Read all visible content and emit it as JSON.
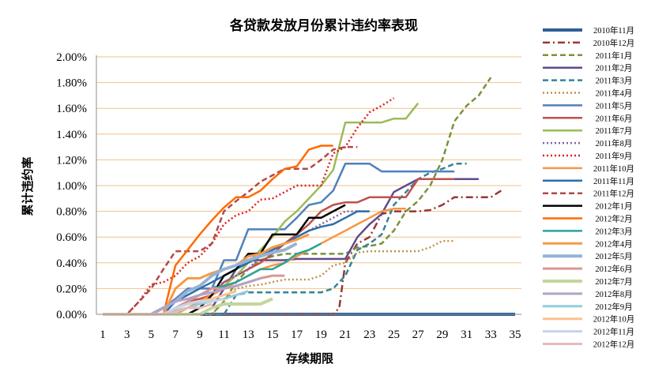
{
  "chart_data": {
    "type": "line",
    "title": "各贷款发放月份累计违约率表现",
    "xlabel": "存续期限",
    "ylabel": "累计违约率",
    "x_ticks": [
      1,
      3,
      5,
      7,
      9,
      11,
      13,
      15,
      17,
      19,
      21,
      23,
      25,
      27,
      29,
      31,
      33,
      35
    ],
    "y_ticks": [
      "0.00%",
      "0.20%",
      "0.40%",
      "0.60%",
      "0.80%",
      "1.00%",
      "1.20%",
      "1.40%",
      "1.60%",
      "1.80%",
      "2.00%"
    ],
    "xlim": [
      1,
      35
    ],
    "ylim": [
      0,
      2.0
    ],
    "y_unit": "%",
    "grid": "horizontal",
    "legend_position": "right",
    "series": [
      {
        "name": "2010年11月",
        "color": "#2e5f96",
        "dash": "solid",
        "width": 4,
        "x": [
          1,
          2,
          3,
          4,
          5,
          6,
          7,
          8,
          9,
          10,
          11,
          12,
          13,
          14,
          15,
          16,
          17,
          18,
          19,
          20,
          21,
          22,
          23,
          24,
          25,
          26,
          27,
          28,
          29,
          30,
          31,
          32,
          33,
          34,
          35
        ],
        "y": [
          0,
          0,
          0,
          0,
          0,
          0,
          0,
          0,
          0,
          0,
          0,
          0,
          0,
          0,
          0,
          0,
          0,
          0,
          0,
          0,
          0,
          0,
          0,
          0,
          0,
          0,
          0,
          0,
          0,
          0,
          0,
          0,
          0,
          0,
          0
        ]
      },
      {
        "name": "2010年12月",
        "color": "#953735",
        "dash": "dashdot",
        "width": 2.5,
        "x": [
          1,
          20,
          20.5,
          21,
          22,
          23,
          24,
          25,
          26,
          27,
          28,
          29,
          30,
          31,
          32,
          33,
          34
        ],
        "y": [
          0,
          0,
          0.05,
          0.4,
          0.55,
          0.6,
          0.78,
          0.8,
          0.8,
          0.8,
          0.81,
          0.85,
          0.91,
          0.91,
          0.91,
          0.91,
          0.97
        ]
      },
      {
        "name": "2011年1月",
        "color": "#77933c",
        "dash": "dash",
        "width": 2.5,
        "x": [
          1,
          10,
          11,
          12,
          13,
          14,
          15,
          16,
          17,
          18,
          19,
          20,
          21,
          22,
          23,
          24,
          25,
          26,
          27,
          28,
          29,
          30,
          31,
          32,
          33
        ],
        "y": [
          0,
          0,
          0.1,
          0.25,
          0.35,
          0.42,
          0.45,
          0.47,
          0.47,
          0.47,
          0.47,
          0.47,
          0.47,
          0.52,
          0.53,
          0.55,
          0.65,
          0.8,
          0.88,
          1.0,
          1.2,
          1.5,
          1.62,
          1.7,
          1.84
        ]
      },
      {
        "name": "2011年2月",
        "color": "#5f4b8b",
        "dash": "solid",
        "width": 2.5,
        "x": [
          1,
          9,
          10,
          11,
          12,
          13,
          14,
          15,
          16,
          17,
          18,
          19,
          20,
          21,
          22,
          23,
          24,
          25,
          26,
          27,
          28,
          29,
          30,
          31,
          32
        ],
        "y": [
          0,
          0,
          0.05,
          0.2,
          0.35,
          0.42,
          0.42,
          0.42,
          0.42,
          0.43,
          0.43,
          0.43,
          0.43,
          0.43,
          0.6,
          0.7,
          0.78,
          0.95,
          1.0,
          1.05,
          1.05,
          1.05,
          1.05,
          1.05,
          1.05
        ]
      },
      {
        "name": "2011年3月",
        "color": "#31849b",
        "dash": "dash",
        "width": 2.5,
        "x": [
          1,
          11,
          12,
          13,
          14,
          15,
          16,
          17,
          18,
          19,
          20,
          21,
          22,
          23,
          24,
          25,
          26,
          27,
          28,
          29,
          30,
          31
        ],
        "y": [
          0,
          0,
          0.15,
          0.17,
          0.17,
          0.17,
          0.17,
          0.17,
          0.17,
          0.17,
          0.2,
          0.3,
          0.5,
          0.55,
          0.62,
          0.85,
          0.95,
          1.05,
          1.1,
          1.13,
          1.17,
          1.17
        ]
      },
      {
        "name": "2011年4月",
        "color": "#c0924a",
        "dash": "dot",
        "width": 2.5,
        "x": [
          1,
          10,
          11,
          12,
          13,
          14,
          15,
          16,
          17,
          18,
          19,
          20,
          21,
          22,
          23,
          24,
          25,
          26,
          27,
          28,
          29,
          30
        ],
        "y": [
          0,
          0,
          0.1,
          0.2,
          0.22,
          0.23,
          0.25,
          0.27,
          0.27,
          0.27,
          0.3,
          0.38,
          0.4,
          0.48,
          0.49,
          0.49,
          0.49,
          0.49,
          0.49,
          0.52,
          0.57,
          0.57
        ]
      },
      {
        "name": "2011年5月",
        "color": "#4f81bd",
        "dash": "solid",
        "width": 2.5,
        "x": [
          1,
          5,
          6,
          7,
          8,
          9,
          10,
          11,
          12,
          13,
          14,
          15,
          16,
          17,
          18,
          19,
          20,
          21,
          22,
          23,
          24,
          25,
          26,
          27,
          28,
          29,
          30
        ],
        "y": [
          0,
          0,
          0.05,
          0.12,
          0.2,
          0.2,
          0.2,
          0.42,
          0.42,
          0.66,
          0.66,
          0.66,
          0.66,
          0.75,
          0.85,
          0.87,
          0.96,
          1.17,
          1.17,
          1.17,
          1.11,
          1.11,
          1.11,
          1.11,
          1.11,
          1.11,
          1.11
        ]
      },
      {
        "name": "2011年6月",
        "color": "#c0504d",
        "dash": "solid",
        "width": 2.5,
        "x": [
          1,
          6,
          7,
          8,
          9,
          10,
          11,
          12,
          13,
          14,
          15,
          16,
          17,
          18,
          19,
          20,
          21,
          22,
          23,
          24,
          25,
          26,
          27,
          28,
          29,
          30
        ],
        "y": [
          0,
          0,
          0.05,
          0.1,
          0.12,
          0.15,
          0.25,
          0.3,
          0.35,
          0.4,
          0.47,
          0.55,
          0.62,
          0.7,
          0.8,
          0.85,
          0.87,
          0.87,
          0.91,
          0.91,
          0.91,
          0.91,
          1.05,
          1.05,
          1.05,
          1.05
        ]
      },
      {
        "name": "2011年7月",
        "color": "#9bbb59",
        "dash": "solid",
        "width": 2.5,
        "x": [
          1,
          7,
          8,
          9,
          10,
          11,
          12,
          13,
          14,
          15,
          16,
          17,
          18,
          19,
          20,
          21,
          22,
          23,
          24,
          25,
          26,
          27
        ],
        "y": [
          0,
          0,
          0.05,
          0.1,
          0.15,
          0.22,
          0.3,
          0.4,
          0.5,
          0.6,
          0.72,
          0.8,
          0.9,
          1.0,
          1.12,
          1.49,
          1.49,
          1.49,
          1.49,
          1.52,
          1.52,
          1.64
        ]
      },
      {
        "name": "2011年8月",
        "color": "#8064a2",
        "dash": "dot",
        "width": 2.5,
        "x": [
          1,
          6,
          7,
          8,
          9,
          10,
          11,
          12,
          13,
          14,
          15,
          16,
          17,
          18,
          19,
          20,
          21,
          22,
          23
        ],
        "y": [
          0,
          0,
          0.05,
          0.1,
          0.15,
          0.2,
          0.25,
          0.3,
          0.35,
          0.45,
          0.5,
          0.55,
          0.6,
          0.65,
          0.7,
          0.75,
          0.8,
          0.8,
          0.8
        ]
      },
      {
        "name": "2011年9月",
        "color": "#e02020",
        "dash": "dot",
        "width": 2.5,
        "x": [
          1,
          3,
          4,
          5,
          6,
          7,
          8,
          9,
          10,
          11,
          12,
          13,
          14,
          15,
          16,
          17,
          18,
          19,
          20,
          21,
          22,
          23,
          24,
          25
        ],
        "y": [
          0,
          0,
          0.1,
          0.23,
          0.25,
          0.3,
          0.4,
          0.45,
          0.55,
          0.7,
          0.77,
          0.8,
          0.89,
          0.9,
          0.95,
          1.0,
          1.0,
          1.0,
          1.25,
          1.3,
          1.45,
          1.57,
          1.62,
          1.68
        ]
      },
      {
        "name": "2011年10月",
        "color": "#f79646",
        "dash": "solid",
        "width": 2.5,
        "x": [
          1,
          7,
          8,
          9,
          10,
          11,
          12,
          13,
          14,
          15,
          16,
          17,
          18,
          19,
          20,
          21,
          22,
          23,
          24,
          25,
          26
        ],
        "y": [
          0,
          0,
          0.05,
          0.1,
          0.15,
          0.2,
          0.25,
          0.3,
          0.35,
          0.38,
          0.4,
          0.45,
          0.5,
          0.55,
          0.6,
          0.65,
          0.7,
          0.75,
          0.8,
          0.82,
          0.82
        ]
      },
      {
        "name": "2011年11月",
        "color": "#2c6fa8",
        "dash": "solid",
        "width": 2.5,
        "x": [
          1,
          6,
          7,
          8,
          9,
          10,
          11,
          12,
          13,
          14,
          15,
          16,
          17,
          18,
          19,
          20,
          21,
          22,
          23
        ],
        "y": [
          0,
          0,
          0.1,
          0.15,
          0.2,
          0.25,
          0.3,
          0.35,
          0.4,
          0.45,
          0.5,
          0.55,
          0.6,
          0.65,
          0.68,
          0.7,
          0.75,
          0.8,
          0.8
        ]
      },
      {
        "name": "2011年12月",
        "color": "#b04a47",
        "dash": "dash",
        "width": 2.5,
        "x": [
          1,
          3,
          4,
          5,
          6,
          7,
          8,
          9,
          10,
          11,
          12,
          13,
          14,
          15,
          16,
          17,
          18,
          19,
          20,
          21,
          22
        ],
        "y": [
          0,
          0,
          0.1,
          0.2,
          0.35,
          0.49,
          0.49,
          0.49,
          0.55,
          0.8,
          0.88,
          0.95,
          1.03,
          1.08,
          1.13,
          1.13,
          1.13,
          1.2,
          1.28,
          1.3,
          1.3
        ]
      },
      {
        "name": "2012年1月",
        "color": "#000000",
        "dash": "solid",
        "width": 2.5,
        "x": [
          1,
          8,
          9,
          10,
          11,
          12,
          13,
          14,
          15,
          16,
          17,
          18,
          19,
          20,
          21
        ],
        "y": [
          0,
          0,
          0.05,
          0.15,
          0.3,
          0.35,
          0.47,
          0.47,
          0.62,
          0.62,
          0.62,
          0.75,
          0.75,
          0.8,
          0.85
        ]
      },
      {
        "name": "2012年2月",
        "color": "#ff6a00",
        "dash": "solid",
        "width": 2.5,
        "x": [
          1,
          6,
          7,
          8,
          9,
          10,
          11,
          12,
          13,
          14,
          15,
          16,
          17,
          18,
          19,
          20
        ],
        "y": [
          0,
          0,
          0.38,
          0.5,
          0.62,
          0.73,
          0.83,
          0.91,
          0.91,
          0.96,
          1.05,
          1.13,
          1.15,
          1.28,
          1.31,
          1.31
        ]
      },
      {
        "name": "2012年3月",
        "color": "#2aa39b",
        "dash": "solid",
        "width": 2.5,
        "x": [
          1,
          6,
          7,
          8,
          9,
          10,
          11,
          12,
          13,
          14,
          15,
          16,
          17,
          18,
          19
        ],
        "y": [
          0,
          0,
          0.05,
          0.1,
          0.15,
          0.2,
          0.22,
          0.25,
          0.3,
          0.35,
          0.35,
          0.4,
          0.47,
          0.5,
          0.55
        ]
      },
      {
        "name": "2012年4月",
        "color": "#f59a47",
        "dash": "solid",
        "width": 3,
        "x": [
          1,
          6,
          7,
          8,
          9,
          10,
          11,
          12,
          13,
          14,
          15,
          16,
          17,
          18
        ],
        "y": [
          0,
          0,
          0.2,
          0.28,
          0.28,
          0.32,
          0.35,
          0.38,
          0.45,
          0.47,
          0.52,
          0.55,
          0.58,
          0.62
        ]
      },
      {
        "name": "2012年5月",
        "color": "#95b3d7",
        "dash": "solid",
        "width": 4,
        "x": [
          1,
          5,
          6,
          7,
          8,
          9,
          10,
          11,
          12,
          13,
          14,
          15,
          16,
          17
        ],
        "y": [
          0,
          0,
          0.05,
          0.1,
          0.18,
          0.22,
          0.3,
          0.35,
          0.38,
          0.42,
          0.45,
          0.48,
          0.5,
          0.55
        ]
      },
      {
        "name": "2012年6月",
        "color": "#d99694",
        "dash": "solid",
        "width": 3,
        "x": [
          1,
          6,
          7,
          8,
          9,
          10,
          11,
          12,
          13,
          14,
          15,
          16
        ],
        "y": [
          0,
          0,
          0.05,
          0.1,
          0.15,
          0.2,
          0.2,
          0.22,
          0.25,
          0.28,
          0.3,
          0.3
        ]
      },
      {
        "name": "2012年7月",
        "color": "#c3d69b",
        "dash": "solid",
        "width": 4,
        "x": [
          1,
          9,
          10,
          11,
          12,
          13,
          14,
          15
        ],
        "y": [
          0,
          0,
          0.05,
          0.08,
          0.08,
          0.08,
          0.08,
          0.12
        ]
      },
      {
        "name": "2012年8月",
        "color": "#b3a2c7",
        "dash": "solid",
        "width": 3,
        "x": [
          1,
          5,
          6,
          7,
          8,
          9,
          10,
          11,
          12,
          13,
          14
        ],
        "y": [
          0,
          0,
          0.05,
          0.1,
          0.12,
          0.15,
          0.17,
          0.2,
          0.22,
          0.25,
          0.28
        ]
      },
      {
        "name": "2012年9月",
        "color": "#92cddc",
        "dash": "solid",
        "width": 3,
        "x": [
          1,
          6,
          7,
          8,
          9,
          10,
          11,
          12,
          13
        ],
        "y": [
          0,
          0,
          0.03,
          0.05,
          0.08,
          0.1,
          0.12,
          0.15,
          0.18
        ]
      },
      {
        "name": "2012年10月",
        "color": "#fac090",
        "dash": "solid",
        "width": 3,
        "x": [
          1,
          6,
          7,
          8,
          9,
          10,
          11,
          12
        ],
        "y": [
          0,
          0,
          0.05,
          0.08,
          0.1,
          0.12,
          0.15,
          0.18
        ]
      },
      {
        "name": "2012年11月",
        "color": "#c5d4e8",
        "dash": "solid",
        "width": 3,
        "x": [
          1,
          6,
          7,
          8,
          9,
          10,
          11
        ],
        "y": [
          0,
          0,
          0.05,
          0.08,
          0.1,
          0.1,
          0.12
        ]
      },
      {
        "name": "2012年12月",
        "color": "#e6b9b8",
        "dash": "solid",
        "width": 3,
        "x": [
          1,
          6,
          7,
          8,
          9,
          10
        ],
        "y": [
          0,
          0,
          0.02,
          0.05,
          0.05,
          0.08
        ]
      }
    ]
  }
}
